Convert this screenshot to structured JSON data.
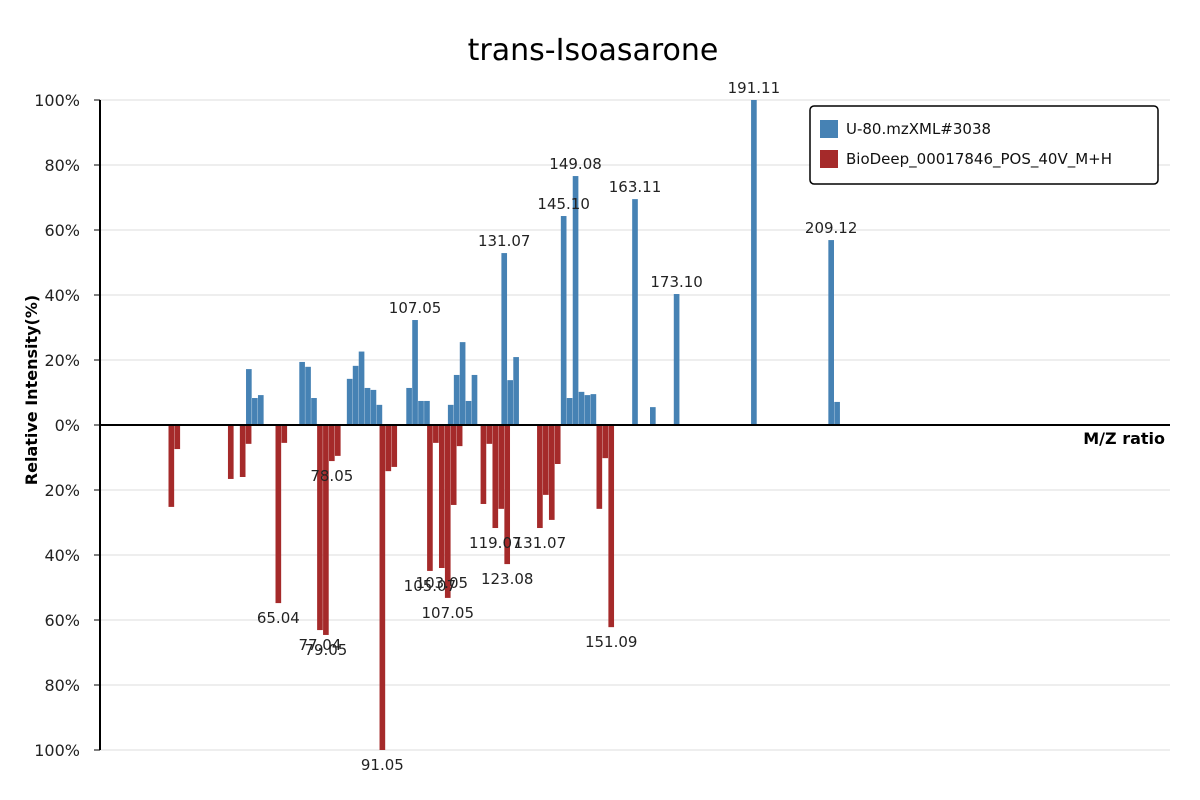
{
  "chart_data": {
    "type": "bar",
    "title": "trans-Isoasarone",
    "xlabel": "M/Z ratio",
    "ylabel": "Relative Intensity(%)",
    "y_ticks_top": [
      "100%",
      "80%",
      "60%",
      "40%",
      "20%",
      "0%"
    ],
    "y_ticks_bottom": [
      "20%",
      "40%",
      "60%",
      "80%",
      "100%"
    ],
    "ylim": [
      -100,
      100
    ],
    "xlim": [
      40,
      220
    ],
    "grid": true,
    "legend_position": "top-right",
    "colors": {
      "top": "#4682b4",
      "bottom": "#a52a2a"
    },
    "series": [
      {
        "name": "U-80.mzXML#3038",
        "direction": "up",
        "peaks": [
          {
            "mz": 65.04,
            "intensity": 17.2
          },
          {
            "mz": 66.05,
            "intensity": 8.3
          },
          {
            "mz": 67.05,
            "intensity": 9.2
          },
          {
            "mz": 74.0,
            "intensity": 19.4
          },
          {
            "mz": 75.0,
            "intensity": 17.9
          },
          {
            "mz": 76.0,
            "intensity": 8.3
          },
          {
            "mz": 82.0,
            "intensity": 14.2
          },
          {
            "mz": 83.0,
            "intensity": 18.2
          },
          {
            "mz": 84.0,
            "intensity": 22.6
          },
          {
            "mz": 85.0,
            "intensity": 11.4
          },
          {
            "mz": 86.0,
            "intensity": 10.8
          },
          {
            "mz": 87.0,
            "intensity": 6.2
          },
          {
            "mz": 92.0,
            "intensity": 11.4
          },
          {
            "mz": 93.0,
            "intensity": 32.3,
            "label": "107.05"
          },
          {
            "mz": 94.0,
            "intensity": 7.4
          },
          {
            "mz": 95.0,
            "intensity": 7.4
          },
          {
            "mz": 99.0,
            "intensity": 6.2
          },
          {
            "mz": 100.0,
            "intensity": 15.4
          },
          {
            "mz": 101.0,
            "intensity": 25.5
          },
          {
            "mz": 102.0,
            "intensity": 7.4
          },
          {
            "mz": 103.0,
            "intensity": 15.4
          },
          {
            "mz": 108.0,
            "intensity": 52.9,
            "label": "131.07"
          },
          {
            "mz": 109.0,
            "intensity": 13.8
          },
          {
            "mz": 110.0,
            "intensity": 20.9
          },
          {
            "mz": 118.0,
            "intensity": 64.3,
            "label": "145.10"
          },
          {
            "mz": 119.0,
            "intensity": 8.3
          },
          {
            "mz": 120.0,
            "intensity": 76.6,
            "label": "149.08"
          },
          {
            "mz": 121.0,
            "intensity": 10.2
          },
          {
            "mz": 122.0,
            "intensity": 9.2
          },
          {
            "mz": 123.0,
            "intensity": 9.5
          },
          {
            "mz": 130.0,
            "intensity": 69.5,
            "label": "163.11"
          },
          {
            "mz": 133.0,
            "intensity": 5.5
          },
          {
            "mz": 137.0,
            "intensity": 40.3,
            "label": "173.10"
          },
          {
            "mz": 150.0,
            "intensity": 100.0,
            "label": "191.11"
          },
          {
            "mz": 163.0,
            "intensity": 56.9,
            "label": "209.12"
          },
          {
            "mz": 164.0,
            "intensity": 7.1
          }
        ]
      },
      {
        "name": "BioDeep_00017846_POS_40V_M+H",
        "direction": "down",
        "peaks": [
          {
            "mz": 52.0,
            "intensity": 25.2
          },
          {
            "mz": 53.0,
            "intensity": 7.4
          },
          {
            "mz": 62.0,
            "intensity": 16.6
          },
          {
            "mz": 64.0,
            "intensity": 16.0
          },
          {
            "mz": 65.0,
            "intensity": 5.8
          },
          {
            "mz": 70.0,
            "intensity": 54.8,
            "label": "65.04"
          },
          {
            "mz": 71.0,
            "intensity": 5.5
          },
          {
            "mz": 77.0,
            "intensity": 63.1,
            "label": "77.04"
          },
          {
            "mz": 78.0,
            "intensity": 64.6,
            "label": "79.05"
          },
          {
            "mz": 79.0,
            "intensity": 11.1,
            "label": "78.05"
          },
          {
            "mz": 80.0,
            "intensity": 9.5
          },
          {
            "mz": 87.5,
            "intensity": 100.0,
            "label": "91.05"
          },
          {
            "mz": 88.5,
            "intensity": 14.2
          },
          {
            "mz": 89.5,
            "intensity": 12.9
          },
          {
            "mz": 95.5,
            "intensity": 44.9,
            "label": "105.07"
          },
          {
            "mz": 96.5,
            "intensity": 5.5
          },
          {
            "mz": 97.5,
            "intensity": 44.0,
            "label": "103.05"
          },
          {
            "mz": 98.5,
            "intensity": 53.2,
            "label": "107.05"
          },
          {
            "mz": 99.5,
            "intensity": 24.6
          },
          {
            "mz": 100.5,
            "intensity": 6.5
          },
          {
            "mz": 104.5,
            "intensity": 24.3
          },
          {
            "mz": 105.5,
            "intensity": 5.8
          },
          {
            "mz": 106.5,
            "intensity": 31.7,
            "label": "119.07"
          },
          {
            "mz": 107.5,
            "intensity": 25.8
          },
          {
            "mz": 108.5,
            "intensity": 42.8,
            "label": "123.08"
          },
          {
            "mz": 114.0,
            "intensity": 31.7,
            "label": "131.07"
          },
          {
            "mz": 115.0,
            "intensity": 21.5
          },
          {
            "mz": 116.0,
            "intensity": 29.2
          },
          {
            "mz": 117.0,
            "intensity": 12.0
          },
          {
            "mz": 124.0,
            "intensity": 25.8
          },
          {
            "mz": 125.0,
            "intensity": 10.2
          },
          {
            "mz": 126.0,
            "intensity": 62.2,
            "label": "151.09"
          }
        ]
      }
    ]
  }
}
